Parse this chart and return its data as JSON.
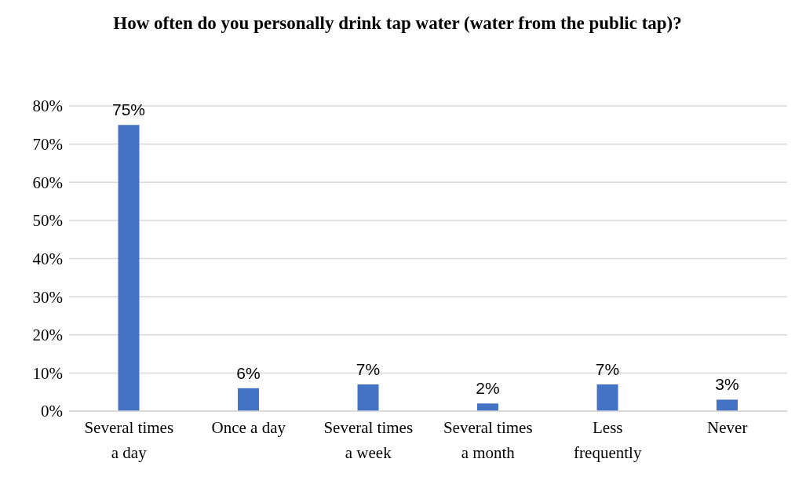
{
  "chart_data": {
    "type": "bar",
    "title": "How often do you personally drink tap water (water from the public tap)?",
    "categories": [
      "Several times a day",
      "Once a day",
      "Several times a week",
      "Several times a month",
      "Less frequently",
      "Never"
    ],
    "values": [
      75,
      6,
      7,
      2,
      7,
      3
    ],
    "value_labels": [
      "75%",
      "6%",
      "7%",
      "2%",
      "7%",
      "3%"
    ],
    "color": "#4472c4",
    "ylim": [
      0,
      80
    ],
    "yticks": [
      {
        "value": 0,
        "label": "0%"
      },
      {
        "value": 10,
        "label": "10%"
      },
      {
        "value": 20,
        "label": "20%"
      },
      {
        "value": 30,
        "label": "30%"
      },
      {
        "value": 40,
        "label": "40%"
      },
      {
        "value": 50,
        "label": "50%"
      },
      {
        "value": 60,
        "label": "60%"
      },
      {
        "value": 70,
        "label": "70%"
      },
      {
        "value": 80,
        "label": "80%"
      }
    ],
    "grid": "y",
    "legend": false
  }
}
